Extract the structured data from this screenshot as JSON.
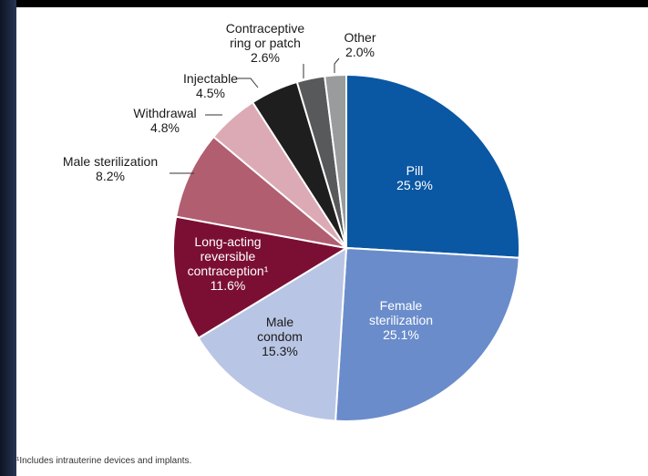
{
  "chart_data": {
    "type": "pie",
    "slices": [
      {
        "key": "pill",
        "lines": [
          "Pill",
          "25.9%"
        ],
        "value": 25.9,
        "color": "#0a57a3",
        "text_color": "#ffffff",
        "inside": true
      },
      {
        "key": "female-sterilization",
        "lines": [
          "Female",
          "sterilization",
          "25.1%"
        ],
        "value": 25.1,
        "color": "#6a8ccb",
        "text_color": "#ffffff",
        "inside": true
      },
      {
        "key": "male-condom",
        "lines": [
          "Male",
          "condom",
          "15.3%"
        ],
        "value": 15.3,
        "color": "#b9c5e4",
        "text_color": "#1a1a1a",
        "inside": true
      },
      {
        "key": "larc",
        "lines": [
          "Long-acting",
          "reversible",
          "contraception¹",
          "11.6%"
        ],
        "value": 11.6,
        "color": "#7b0f33",
        "text_color": "#ffffff",
        "inside": true
      },
      {
        "key": "male-sterilization",
        "lines": [
          "Male sterilization",
          "8.2%"
        ],
        "value": 8.2,
        "color": "#b05e70",
        "text_color": "#1a1a1a",
        "inside": false
      },
      {
        "key": "withdrawal",
        "lines": [
          "Withdrawal",
          "4.8%"
        ],
        "value": 4.8,
        "color": "#dcaab4",
        "text_color": "#1a1a1a",
        "inside": false
      },
      {
        "key": "injectable",
        "lines": [
          "Injectable",
          "4.5%"
        ],
        "value": 4.5,
        "color": "#1e1e1e",
        "text_color": "#1a1a1a",
        "inside": false
      },
      {
        "key": "ring-or-patch",
        "lines": [
          "Contraceptive",
          "ring or patch",
          "2.6%"
        ],
        "value": 2.6,
        "color": "#58595b",
        "text_color": "#1a1a1a",
        "inside": false
      },
      {
        "key": "other",
        "lines": [
          "Other",
          "2.0%"
        ],
        "value": 2.0,
        "color": "#9a9b9d",
        "text_color": "#1a1a1a",
        "inside": false
      }
    ],
    "footnote": "¹Includes intrauterine devices and implants."
  }
}
